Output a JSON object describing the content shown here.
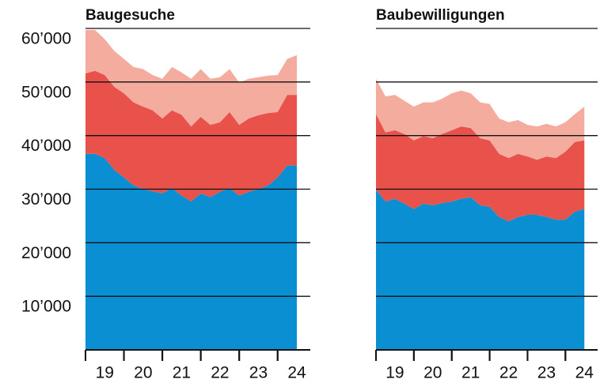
{
  "chart_data": [
    {
      "type": "area",
      "stacked": true,
      "title": "Baugesuche",
      "x": [
        19,
        19.25,
        19.5,
        19.75,
        20,
        20.25,
        20.5,
        20.75,
        21,
        21.25,
        21.5,
        21.75,
        22,
        22.25,
        22.5,
        22.75,
        23,
        23.25,
        23.5,
        23.75,
        24,
        24.25,
        24.5
      ],
      "xlim": [
        19,
        24.85
      ],
      "xticks": [
        {
          "value": 19.5,
          "label": "19"
        },
        {
          "value": 20.5,
          "label": "20"
        },
        {
          "value": 21.5,
          "label": "21"
        },
        {
          "value": 22.5,
          "label": "22"
        },
        {
          "value": 23.5,
          "label": "23"
        },
        {
          "value": 24.5,
          "label": "24"
        }
      ],
      "ylim": [
        0,
        60000
      ],
      "yticks": [
        {
          "value": 10000,
          "label": "10’000"
        },
        {
          "value": 20000,
          "label": "20’000"
        },
        {
          "value": 30000,
          "label": "30’000"
        },
        {
          "value": 40000,
          "label": "40’000"
        },
        {
          "value": 50000,
          "label": "50’000"
        },
        {
          "value": 60000,
          "label": "60’000"
        }
      ],
      "show_ytick_labels": true,
      "grid": true,
      "series": [
        {
          "color": "#0a8fd2",
          "values": [
            36600,
            36600,
            35800,
            33600,
            32200,
            30700,
            30000,
            29600,
            29200,
            30200,
            28800,
            27700,
            29200,
            28500,
            29500,
            30200,
            28800,
            29500,
            30000,
            30700,
            32200,
            34400,
            34400
          ]
        },
        {
          "color": "#e8524a",
          "values": [
            15000,
            15500,
            15500,
            15500,
            15700,
            15500,
            15400,
            15100,
            14000,
            14500,
            15100,
            14000,
            14300,
            13500,
            13000,
            14200,
            13200,
            13700,
            13800,
            13500,
            12200,
            13200,
            13200
          ]
        },
        {
          "color": "#f3ac9e",
          "values": [
            8100,
            7600,
            6700,
            6700,
            6400,
            6600,
            7000,
            6600,
            7400,
            8100,
            7900,
            8900,
            8900,
            8600,
            8400,
            8000,
            7900,
            7400,
            7100,
            7000,
            6900,
            6700,
            7400
          ]
        }
      ]
    },
    {
      "type": "area",
      "stacked": true,
      "title": "Baubewilligungen",
      "x": [
        19,
        19.25,
        19.5,
        19.75,
        20,
        20.25,
        20.5,
        20.75,
        21,
        21.25,
        21.5,
        21.75,
        22,
        22.25,
        22.5,
        22.75,
        23,
        23.25,
        23.5,
        23.75,
        24,
        24.25,
        24.5
      ],
      "xlim": [
        19,
        24.85
      ],
      "xticks": [
        {
          "value": 19.5,
          "label": "19"
        },
        {
          "value": 20.5,
          "label": "20"
        },
        {
          "value": 21.5,
          "label": "21"
        },
        {
          "value": 22.5,
          "label": "22"
        },
        {
          "value": 23.5,
          "label": "23"
        },
        {
          "value": 24.5,
          "label": "24"
        }
      ],
      "ylim": [
        0,
        60000
      ],
      "yticks": [
        10000,
        20000,
        30000,
        40000,
        50000,
        60000
      ],
      "show_ytick_labels": false,
      "grid": true,
      "series": [
        {
          "color": "#0a8fd2",
          "values": [
            29900,
            27700,
            28200,
            27300,
            26300,
            27300,
            27000,
            27400,
            27700,
            28200,
            28500,
            27000,
            26700,
            24800,
            24000,
            24800,
            25200,
            25200,
            24800,
            24300,
            24300,
            25800,
            26300
          ]
        },
        {
          "color": "#e8524a",
          "values": [
            14100,
            12900,
            12800,
            13000,
            12800,
            12600,
            12500,
            12900,
            13300,
            13500,
            12900,
            12500,
            12400,
            11800,
            11800,
            11800,
            10900,
            10300,
            11300,
            11500,
            12700,
            13000,
            12800
          ]
        },
        {
          "color": "#f3ac9e",
          "values": [
            6600,
            6700,
            6600,
            6200,
            6300,
            6300,
            6700,
            6600,
            6900,
            6700,
            6500,
            6700,
            6800,
            6600,
            6700,
            6300,
            5900,
            6200,
            6100,
            5900,
            5500,
            5200,
            6300
          ]
        }
      ]
    }
  ]
}
